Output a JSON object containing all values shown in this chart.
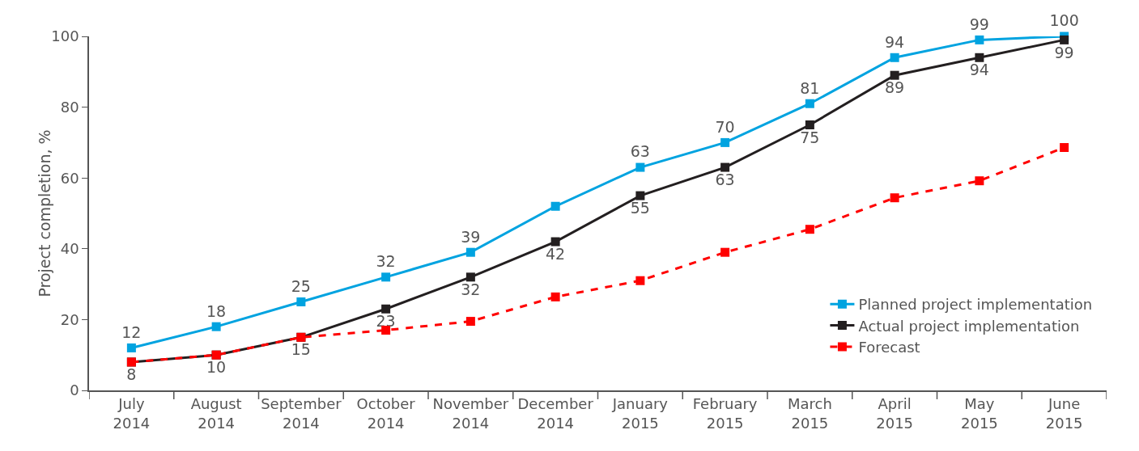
{
  "chart_data": {
    "type": "line",
    "ylabel": "Project completion, %",
    "categories": [
      "July 2014",
      "August 2014",
      "September 2014",
      "October 2014",
      "November 2014",
      "December 2014",
      "January 2015",
      "February 2015",
      "March 2015",
      "April 2015",
      "May 2015",
      "June 2015"
    ],
    "series": [
      {
        "name": "Planned project implementation",
        "color": "#00a3e0",
        "line_style": "solid",
        "values": [
          12,
          18,
          25,
          32,
          39,
          52,
          63,
          70,
          81,
          94,
          99,
          100
        ],
        "value_labels": [
          "12",
          "18",
          "25",
          "32",
          "39",
          null,
          "63",
          "70",
          "81",
          "94",
          "99",
          "100"
        ]
      },
      {
        "name": "Actual project implementation",
        "color": "#231f20",
        "line_style": "solid",
        "values": [
          8,
          10,
          15,
          23,
          32,
          42,
          55,
          63,
          75,
          89,
          94,
          99
        ],
        "value_labels": [
          "8",
          "10",
          "15",
          "23",
          "32",
          "42",
          "55",
          "63",
          "75",
          "89",
          "94",
          "99"
        ]
      },
      {
        "name": "Forecast",
        "color": "#ff0000",
        "line_style": "dashed",
        "values": [
          8,
          10,
          15,
          17,
          19.5,
          26.4,
          31,
          39,
          45.5,
          54.4,
          59.2,
          68.6
        ]
      }
    ],
    "ylim": [
      0,
      100
    ],
    "yticks": [
      0,
      20,
      40,
      60,
      80,
      100
    ],
    "grid": false,
    "legend": "bottom right",
    "marker": "square"
  }
}
